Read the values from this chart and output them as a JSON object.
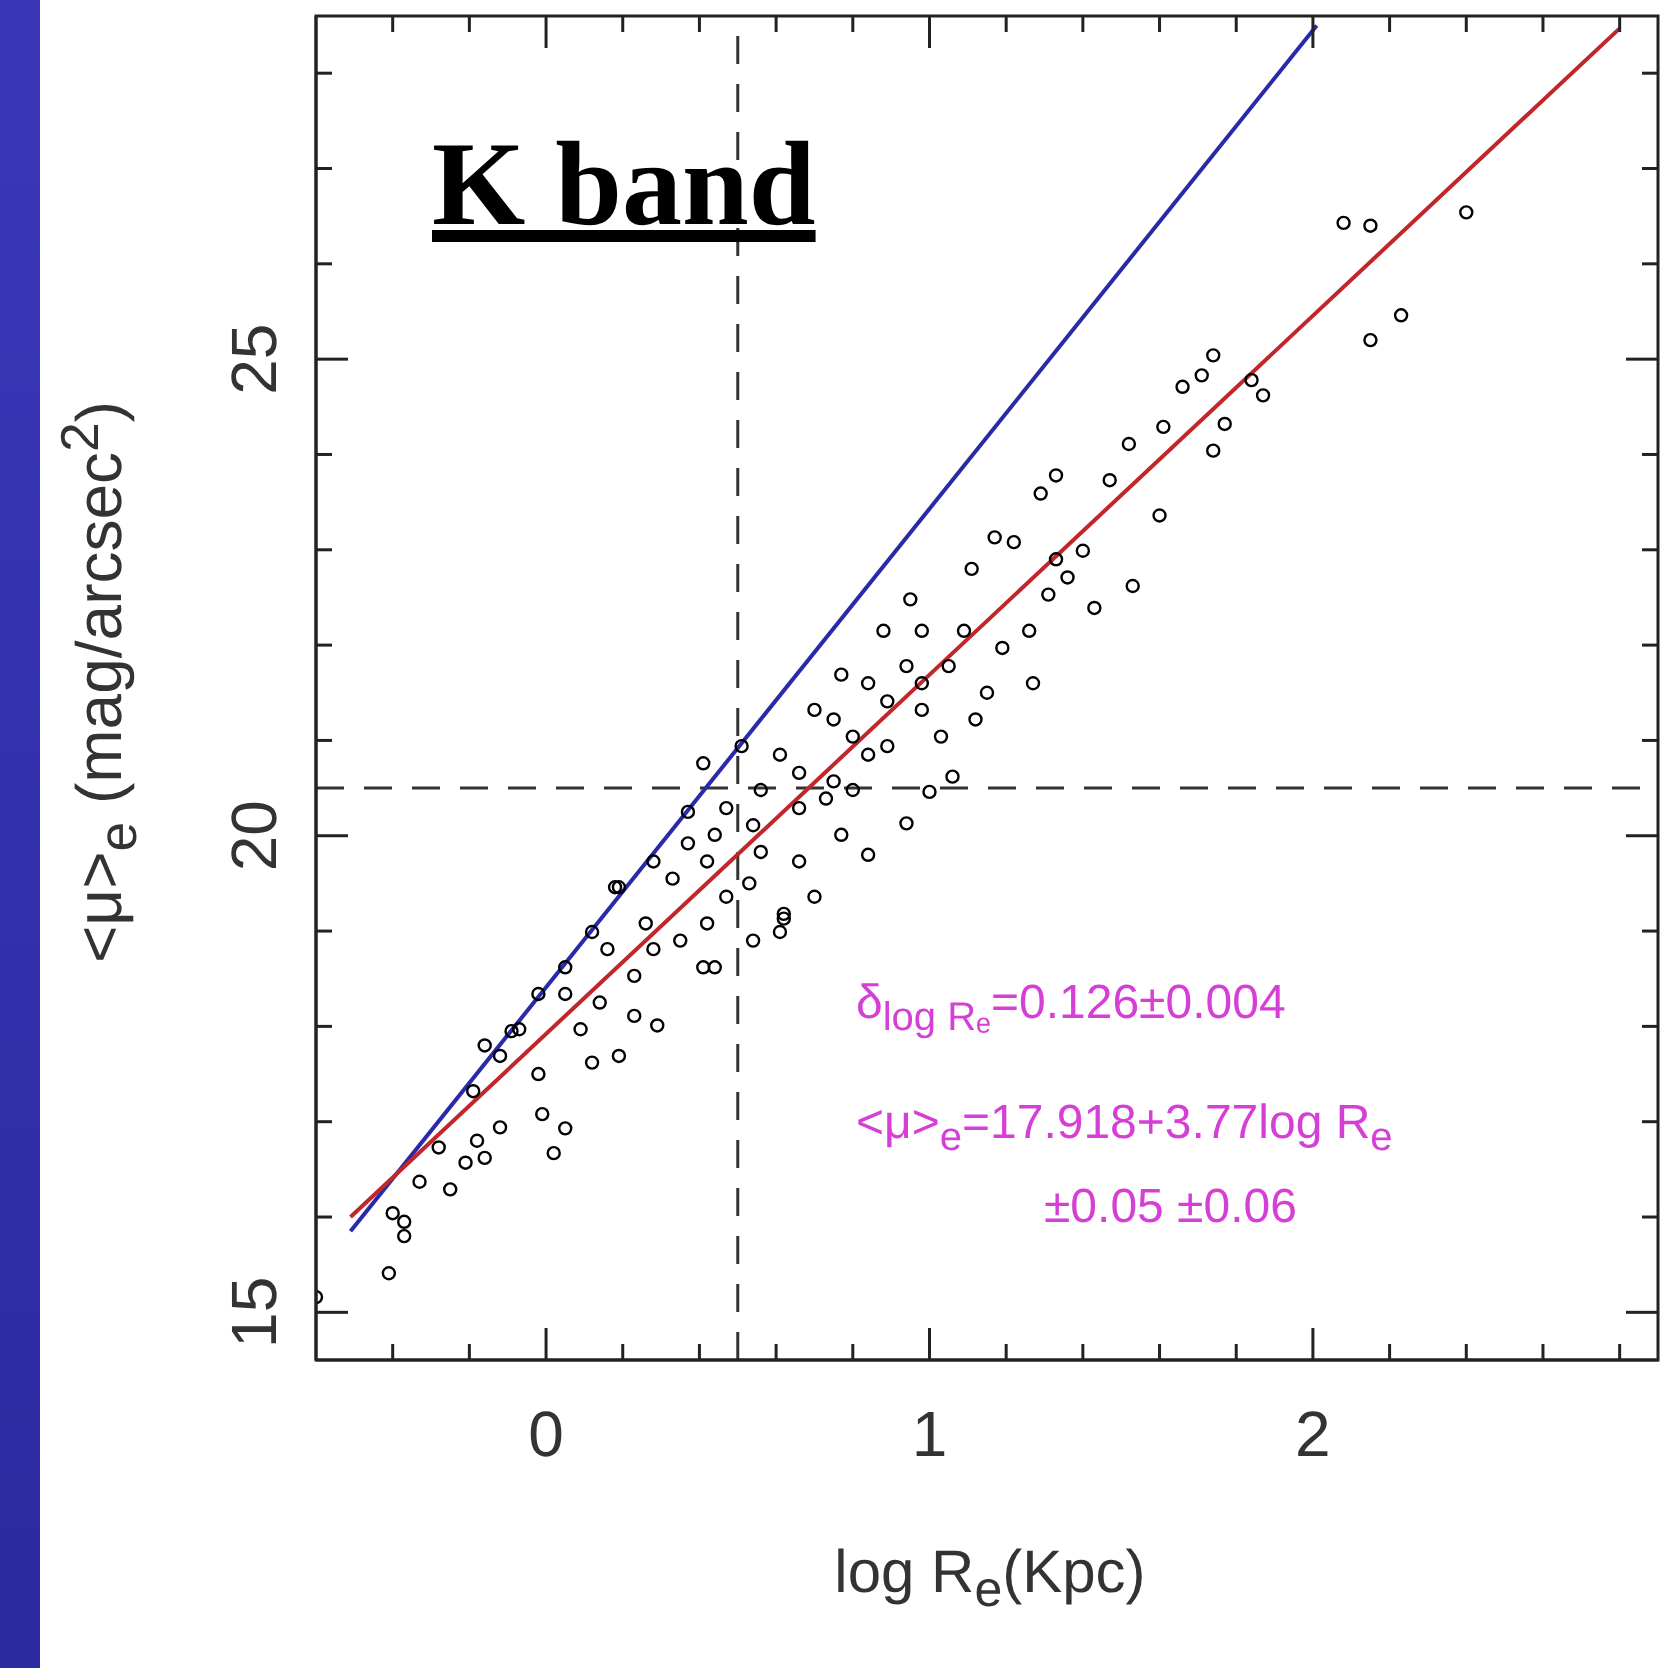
{
  "chart_data": {
    "type": "scatter",
    "title": "K band",
    "xlabel": "log R$_{e}$(Kpc)",
    "ylabel": "<μ>$_{e}$ (mag/arcsec$^{2}$)",
    "annotations": [
      "δ$_{log Rₑ}$=0.126±0.004",
      "<μ>$_{e}$=17.918+3.77log R$_{e}$",
      "±0.05   ±0.06"
    ],
    "xlim": [
      -0.6,
      2.9
    ],
    "xticks": [
      {
        "value": -0.4,
        "label": null
      },
      {
        "value": -0.2,
        "label": null
      },
      0,
      {
        "value": 0.2,
        "label": null
      },
      {
        "value": 0.4,
        "label": null
      },
      {
        "value": 0.6,
        "label": null
      },
      {
        "value": 0.8,
        "label": null
      },
      1,
      {
        "value": 1.2,
        "label": null
      },
      {
        "value": 1.4,
        "label": null
      },
      {
        "value": 1.6,
        "label": null
      },
      {
        "value": 1.8,
        "label": null
      },
      2,
      {
        "value": 2.2,
        "label": null
      },
      {
        "value": 2.4,
        "label": null
      },
      {
        "value": 2.6,
        "label": null
      },
      {
        "value": 2.8,
        "label": null
      }
    ],
    "ylim": [
      14.5,
      28.6
    ],
    "yticks": [
      15,
      {
        "value": 16,
        "label": null
      },
      {
        "value": 17,
        "label": null
      },
      {
        "value": 18,
        "label": null
      },
      {
        "value": 19,
        "label": null
      },
      20,
      {
        "value": 21,
        "label": null
      },
      {
        "value": 22,
        "label": null
      },
      {
        "value": 23,
        "label": null
      },
      {
        "value": 24,
        "label": null
      },
      25,
      {
        "value": 26,
        "label": null
      },
      {
        "value": 27,
        "label": null
      },
      {
        "value": 28,
        "label": null
      }
    ],
    "marker": "circle",
    "ref_lines": [
      {
        "axis": "x",
        "value": 0.5,
        "color": "#333333",
        "line_style": "dashed"
      },
      {
        "axis": "y",
        "value": 20.5,
        "color": "#333333",
        "line_style": "dashed"
      }
    ],
    "series": [
      {
        "color": "#000000",
        "x": [
          -0.6,
          -0.41,
          -0.4,
          -0.37,
          -0.37,
          -0.33,
          -0.25,
          -0.28,
          -0.21,
          -0.18,
          -0.16,
          -0.16,
          -0.09,
          0.02,
          0.05,
          -0.01,
          0.12,
          0.19,
          0.29,
          0.41,
          0.54,
          0.62,
          0.84,
          0.94,
          1.0,
          1.06,
          1.27,
          1.15,
          1.43,
          1.53,
          1.6,
          1.61,
          1.74,
          1.77,
          1.87,
          1.74,
          1.71,
          1.66,
          2.08,
          2.15,
          2.4,
          2.15,
          2.23,
          1.84,
          1.47,
          1.52,
          1.33,
          1.29,
          1.17,
          1.22,
          1.11,
          0.95,
          0.88,
          0.77,
          0.98,
          1.09,
          1.26,
          1.36,
          1.4,
          1.12,
          1.03,
          0.7,
          0.61,
          0.51,
          0.41,
          0.37,
          0.28,
          0.19,
          0.05,
          -0.07,
          0.56,
          0.66,
          0.75,
          0.8,
          0.89,
          0.98,
          0.7,
          0.62,
          0.47,
          0.35,
          0.23,
          0.14,
          0.44,
          0.28,
          0.16,
          0.12,
          0.05,
          0.09,
          0.23,
          0.18,
          0.37,
          0.47,
          0.56,
          0.75,
          0.84,
          0.94,
          1.05,
          1.19,
          1.33,
          1.31,
          0.66,
          0.77,
          0.66,
          0.53,
          0.42,
          0.33,
          0.26,
          -0.02,
          -0.12,
          -0.19,
          -0.02,
          -0.12,
          0.98,
          0.84,
          0.73,
          0.54,
          0.44,
          0.61,
          0.42,
          0.8,
          0.89
        ],
        "values": [
          15.16,
          15.41,
          16.04,
          15.95,
          15.8,
          16.37,
          16.29,
          16.73,
          16.57,
          16.8,
          16.62,
          17.8,
          17.95,
          16.67,
          16.93,
          17.08,
          17.62,
          17.69,
          18.01,
          18.62,
          18.9,
          19.13,
          19.8,
          20.13,
          20.46,
          20.62,
          21.6,
          21.5,
          22.39,
          22.62,
          23.36,
          24.29,
          24.04,
          24.32,
          24.62,
          25.04,
          24.83,
          24.71,
          26.43,
          26.4,
          26.54,
          25.2,
          25.46,
          24.78,
          23.73,
          24.11,
          23.78,
          23.59,
          23.13,
          23.08,
          22.8,
          22.48,
          22.15,
          21.69,
          22.15,
          22.15,
          22.15,
          22.71,
          22.99,
          21.22,
          21.04,
          21.32,
          20.85,
          20.94,
          20.76,
          20.25,
          19.73,
          19.46,
          18.62,
          17.97,
          19.83,
          20.29,
          20.57,
          21.04,
          21.41,
          21.6,
          19.36,
          19.18,
          19.36,
          18.9,
          18.53,
          18.25,
          18.62,
          18.81,
          18.81,
          18.99,
          18.34,
          17.97,
          18.11,
          19.46,
          19.92,
          20.29,
          20.48,
          21.22,
          21.6,
          21.78,
          21.78,
          21.97,
          22.9,
          22.53,
          20.66,
          20.01,
          19.73,
          19.5,
          19.73,
          19.55,
          19.08,
          18.34,
          17.69,
          17.32,
          17.5,
          16.94,
          21.32,
          20.85,
          20.39,
          20.11,
          20.01,
          18.99,
          19.08,
          20.48,
          20.94
        ]
      },
      {
        "type": "line",
        "marker": "none",
        "color": "#2a2aa8",
        "x": [
          -0.51,
          2.01
        ],
        "values": [
          15.85,
          28.5
        ]
      },
      {
        "type": "line",
        "marker": "none",
        "color": "#c0262a",
        "x": [
          -0.51,
          2.8
        ],
        "values": [
          16.0,
          28.47
        ]
      }
    ]
  }
}
